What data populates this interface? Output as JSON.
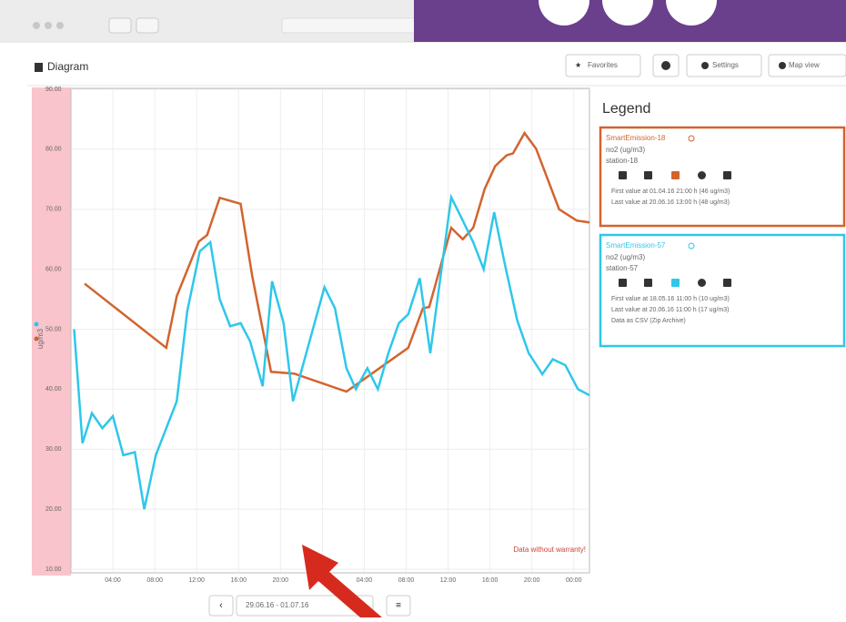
{
  "window": {
    "header": "Diagram",
    "buttons": [
      "Favorites",
      "Settings",
      "Map view"
    ]
  },
  "chart_data": {
    "type": "line",
    "y_label": "ug/m3",
    "annotation": "Data without warranty!",
    "xlim": [
      0,
      49.5
    ],
    "ylim": [
      10,
      90
    ],
    "grid": true,
    "xticks": [
      {
        "value": 4,
        "label": "04:00"
      },
      {
        "value": 8,
        "label": "08:00"
      },
      {
        "value": 12,
        "label": "12:00"
      },
      {
        "value": 16,
        "label": "16:00"
      },
      {
        "value": 20,
        "label": "20:00"
      },
      {
        "value": 24,
        "label": "00:00"
      },
      {
        "value": 28,
        "label": "04:00"
      },
      {
        "value": 32,
        "label": "08:00"
      },
      {
        "value": 36,
        "label": "12:00"
      },
      {
        "value": 40,
        "label": "16:00"
      },
      {
        "value": 44,
        "label": "20:00"
      },
      {
        "value": 48,
        "label": "00:00"
      }
    ],
    "yticks": [
      {
        "value": 10,
        "label": "10.00"
      },
      {
        "value": 20,
        "label": "20.00"
      },
      {
        "value": 30,
        "label": "30.00"
      },
      {
        "value": 40,
        "label": "40.00"
      },
      {
        "value": 50,
        "label": "50.00"
      },
      {
        "value": 60,
        "label": "60.00"
      },
      {
        "value": 70,
        "label": "70.00"
      },
      {
        "value": 80,
        "label": "80.00"
      },
      {
        "value": 90,
        "label": "90.00"
      }
    ],
    "series": [
      {
        "name": "SmartEmission-18",
        "color": "#d2642f",
        "x": [
          1.3,
          9.1,
          10.1,
          12.2,
          13,
          14.2,
          16.2,
          17.3,
          19.1,
          21.3,
          26.3,
          32.2,
          33.6,
          34.2,
          36.3,
          37.4,
          38.4,
          39.5,
          40.5,
          41.6,
          42.2,
          43.3,
          44.4,
          46.6,
          48.3,
          49.5
        ],
        "values": [
          57.6,
          46.9,
          55.5,
          64.6,
          65.7,
          71.9,
          70.9,
          58.9,
          42.9,
          42.6,
          39.6,
          46.9,
          53.5,
          53.7,
          66.9,
          65,
          66.9,
          73.4,
          77.2,
          79,
          79.3,
          82.7,
          80.1,
          70,
          68.1,
          67.8
        ]
      },
      {
        "name": "SmartEmission-57",
        "color": "#2ec7ea",
        "x": [
          0.3,
          1.1,
          2,
          3,
          4,
          5,
          6.1,
          7,
          8.1,
          10.1,
          11.1,
          12.3,
          13.3,
          14.2,
          15.2,
          16.2,
          17.1,
          18.3,
          19.2,
          20.3,
          21.2,
          24.2,
          25.2,
          26.3,
          27.2,
          28.3,
          29.3,
          30.3,
          31.3,
          32.2,
          33.3,
          34.3,
          36.3,
          37.3,
          38.4,
          39.4,
          40.4,
          41.4,
          42.6,
          43.7,
          45,
          46,
          47.2,
          48.4,
          49.5
        ],
        "values": [
          50,
          31,
          36,
          33.5,
          35.5,
          29,
          29.5,
          20,
          29,
          38,
          53,
          63,
          64.5,
          55,
          50.5,
          51,
          48,
          40.5,
          58,
          51,
          38,
          57,
          53.5,
          43.5,
          40,
          43.5,
          40,
          46,
          51,
          52.5,
          58.5,
          46,
          72,
          68.5,
          64.5,
          60,
          69.5,
          61,
          51.5,
          46,
          42.5,
          45,
          44,
          40,
          39
        ]
      }
    ]
  },
  "date_range": "29.06.16 - 01.07.16",
  "legend": {
    "title": "Legend",
    "items": [
      {
        "unit": "no2 (ug/m3)",
        "station": "station-18",
        "first": "First value at 01.04.16 21:00 h (46 ug/m3)",
        "last": "Last value at 20.06.16 13:00 h (48 ug/m3)"
      },
      {
        "unit": "no2 (ug/m3)",
        "station": "station-57",
        "first": "First value at 18.05.16 11:00 h (10 ug/m3)",
        "last": "Last value at 20.06.16 11:00 h (17 ug/m3)",
        "csv": "Data as CSV (Zip Archive)"
      }
    ]
  }
}
